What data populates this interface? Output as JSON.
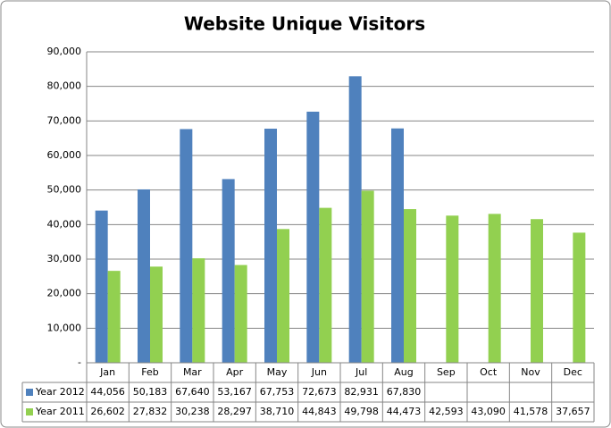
{
  "chart_data": {
    "type": "bar",
    "title": "Website Unique Visitors",
    "categories": [
      "Jan",
      "Feb",
      "Mar",
      "Apr",
      "May",
      "Jun",
      "Jul",
      "Aug",
      "Sep",
      "Oct",
      "Nov",
      "Dec"
    ],
    "series": [
      {
        "name": "Year 2012",
        "color": "#4f81bd",
        "values": [
          44056,
          50183,
          67640,
          53167,
          67753,
          72673,
          82931,
          67830,
          null,
          null,
          null,
          null
        ],
        "value_labels": [
          "44,056",
          "50,183",
          "67,640",
          "53,167",
          "67,753",
          "72,673",
          "82,931",
          "67,830",
          null,
          null,
          null,
          null
        ]
      },
      {
        "name": "Year 2011",
        "color": "#92d050",
        "values": [
          26602,
          27832,
          30238,
          28297,
          38710,
          44843,
          49798,
          44473,
          42593,
          43090,
          41578,
          37657
        ],
        "value_labels": [
          "26,602",
          "27,832",
          "30,238",
          "28,297",
          "38,710",
          "44,843",
          "49,798",
          "44,473",
          "42,593",
          "43,090",
          "41,578",
          "37,657"
        ]
      }
    ],
    "ylim": [
      0,
      90000
    ],
    "yticks": [
      {
        "value": 0,
        "label": "-"
      },
      {
        "value": 10000,
        "label": "10,000"
      },
      {
        "value": 20000,
        "label": "20,000"
      },
      {
        "value": 30000,
        "label": "30,000"
      },
      {
        "value": 40000,
        "label": "40,000"
      },
      {
        "value": 50000,
        "label": "50,000"
      },
      {
        "value": 60000,
        "label": "60,000"
      },
      {
        "value": 70000,
        "label": "70,000"
      },
      {
        "value": 80000,
        "label": "80,000"
      },
      {
        "value": 90000,
        "label": "90,000"
      }
    ],
    "grid": true
  }
}
